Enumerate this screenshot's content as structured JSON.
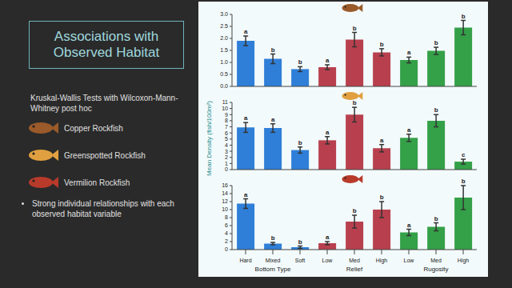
{
  "slide": {
    "title": "Associations with Observed Habitat",
    "method": "Kruskal-Wallis Tests with Wilcoxon-Mann-Whitney post hoc",
    "bullet": "Strong individual relationships with each observed habitat variable",
    "ylabel": "Mean Density (fish/100m²)"
  },
  "chart_data": [
    {
      "type": "bar",
      "tick_labels": "y",
      "categories": [
        "Hard",
        "Mixed",
        "Soft",
        "Low",
        "Med",
        "High",
        "Low",
        "Med",
        "High"
      ],
      "groups": [
        {
          "label": "Bottom Type",
          "count": 3
        },
        {
          "label": "Relief",
          "count": 3
        },
        {
          "label": "Rugosity",
          "count": 3
        }
      ],
      "colors": [
        "#2f7fd8",
        "#2f7fd8",
        "#2f7fd8",
        "#b8404e",
        "#b8404e",
        "#b8404e",
        "#34a048",
        "#34a048",
        "#34a048"
      ],
      "series": [
        {
          "name": "Copper Rockfish",
          "color": "#9a5a2a",
          "values": [
            1.9,
            1.15,
            0.72,
            0.8,
            1.95,
            1.42,
            1.1,
            1.48,
            2.45
          ],
          "errors": [
            0.2,
            0.2,
            0.1,
            0.1,
            0.3,
            0.15,
            0.12,
            0.15,
            0.3
          ],
          "significance_letters": [
            "a",
            "b",
            "b",
            "a",
            "b",
            "b",
            "a",
            "b",
            "b"
          ]
        }
      ],
      "ylim": [
        0,
        3
      ],
      "yticks": [
        {
          "value": 0,
          "label": "0.0"
        },
        0.5,
        {
          "value": 1,
          "label": "1.0"
        },
        1.5,
        {
          "value": 2,
          "label": "2.0"
        },
        2.5,
        {
          "value": 3,
          "label": "3.0"
        }
      ]
    },
    {
      "type": "bar",
      "tick_labels": "y",
      "categories": [
        "Hard",
        "Mixed",
        "Soft",
        "Low",
        "Med",
        "High",
        "Low",
        "Med",
        "High"
      ],
      "groups": [
        {
          "label": "Bottom Type",
          "count": 3
        },
        {
          "label": "Relief",
          "count": 3
        },
        {
          "label": "Rugosity",
          "count": 3
        }
      ],
      "colors": [
        "#2f7fd8",
        "#2f7fd8",
        "#2f7fd8",
        "#b8404e",
        "#b8404e",
        "#b8404e",
        "#34a048",
        "#34a048",
        "#34a048"
      ],
      "series": [
        {
          "name": "Greenspotted Rockfish",
          "color": "#e0a040",
          "values": [
            6.9,
            6.8,
            3.2,
            4.8,
            9.0,
            3.5,
            5.2,
            8.0,
            1.3
          ],
          "errors": [
            0.8,
            0.7,
            0.5,
            0.6,
            1.2,
            0.6,
            0.6,
            1.0,
            0.4
          ],
          "significance_letters": [
            "a",
            "a",
            "b",
            "a",
            "b",
            "a",
            "a",
            "b",
            "c"
          ]
        }
      ],
      "ylim": [
        0,
        11
      ],
      "yticks": [
        0,
        1,
        2,
        3,
        4,
        5,
        6,
        7,
        8,
        9,
        10,
        11
      ]
    },
    {
      "type": "bar",
      "tick_labels": true,
      "categories": [
        "Hard",
        "Mixed",
        "Soft",
        "Low",
        "Med",
        "High",
        "Low",
        "Med",
        "High"
      ],
      "groups": [
        {
          "label": "Bottom Type",
          "count": 3
        },
        {
          "label": "Relief",
          "count": 3
        },
        {
          "label": "Rugosity",
          "count": 3
        }
      ],
      "colors": [
        "#2f7fd8",
        "#2f7fd8",
        "#2f7fd8",
        "#b8404e",
        "#b8404e",
        "#b8404e",
        "#34a048",
        "#34a048",
        "#34a048"
      ],
      "series": [
        {
          "name": "Vermilion Rockfish",
          "color": "#b83a2a",
          "values": [
            11.5,
            1.5,
            0.6,
            1.6,
            7.0,
            10.0,
            4.3,
            5.7,
            13.0
          ],
          "errors": [
            1.2,
            0.3,
            0.3,
            0.4,
            1.6,
            2.0,
            0.8,
            1.0,
            3.0
          ],
          "significance_letters": [
            "a",
            "b",
            "b",
            "a",
            "b",
            "b",
            "a",
            "b",
            "b"
          ]
        }
      ],
      "ylim": [
        0,
        16
      ],
      "yticks": [
        0,
        2,
        4,
        6,
        8,
        10,
        12,
        14,
        16
      ]
    }
  ]
}
